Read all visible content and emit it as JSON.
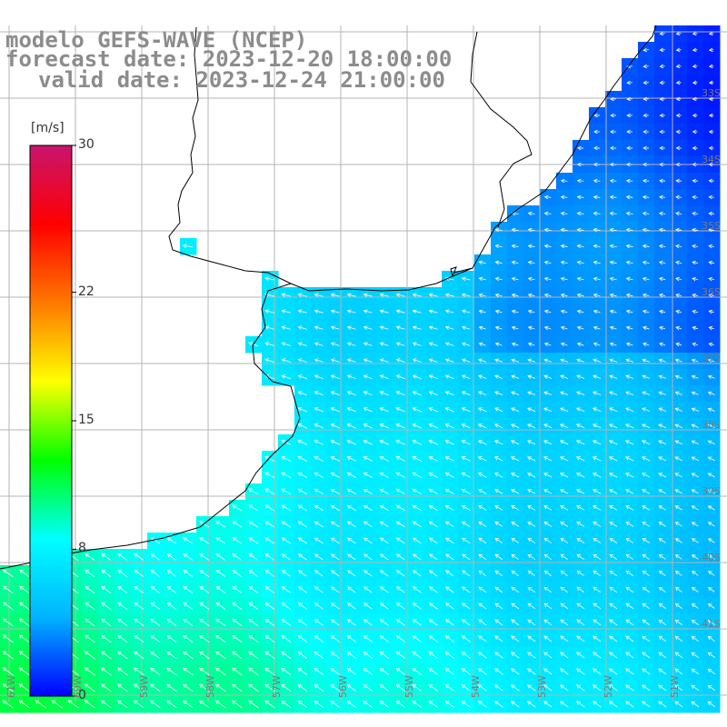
{
  "title": {
    "line1": "modelo GEFS-WAVE (NCEP)",
    "line2": "forecast date: 2023-12-20 18:00:00",
    "line3": "valid date: 2023-12-24 21:00:00"
  },
  "colorbar": {
    "units": "[m/s]",
    "ticks": [
      {
        "value": 30,
        "label": "30"
      },
      {
        "value": 22,
        "label": "22"
      },
      {
        "value": 15,
        "label": "15"
      },
      {
        "value": 8,
        "label": "8"
      },
      {
        "value": 0,
        "label": "0"
      }
    ],
    "min": 0,
    "max": 30,
    "colors": [
      "#0000ff",
      "#00b4ff",
      "#00ffff",
      "#00ff00",
      "#ffff00",
      "#ff7800",
      "#ff0000",
      "#c8146e"
    ]
  },
  "lat_labels": [
    "33S",
    "34S",
    "35S",
    "36S",
    "37S",
    "38S",
    "39S",
    "40S",
    "41S"
  ],
  "lon_labels": [
    "61W",
    "60W",
    "59W",
    "58W",
    "57W",
    "56W",
    "55W",
    "54W",
    "53W",
    "52W",
    "51W"
  ],
  "map": {
    "land_color": "#ffffff",
    "grid_color": "#b4b4b4",
    "coast_color": "#000000",
    "arrow_color": "#ffffff"
  }
}
